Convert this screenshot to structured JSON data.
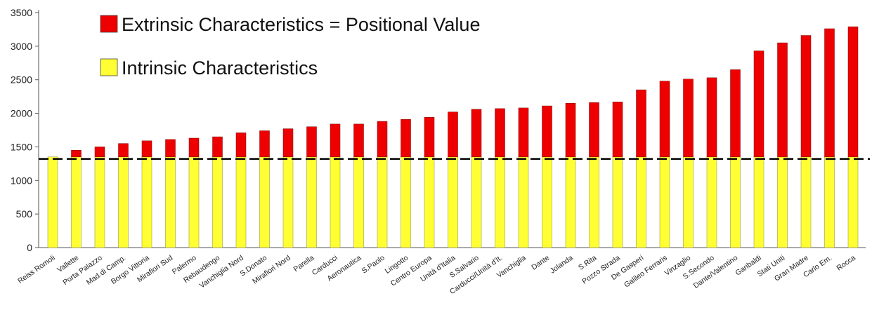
{
  "chart_data": {
    "type": "bar",
    "stacked": true,
    "categories": [
      "Reiss Romoli",
      "Vallette",
      "Porta Palazzo",
      "Mad.di Camp.",
      "Borgo Vittoria",
      "Mirafiori Sud",
      "Palermo",
      "Rebaudengo",
      "Vanchiglia Nord",
      "S.Donato",
      "Mirafiori Nord",
      "Parella",
      "Carducci",
      "Aeronautica",
      "S.Paolo",
      "Lingotto",
      "Centro Europa",
      "Unità d'Italia",
      "S.Salvario",
      "Carducci/Unità d'It.",
      "Vanchiglia",
      "Dante",
      "Jolanda",
      "S.Rita",
      "Pozzo Strada",
      "De Gasperi",
      "Galileo Ferraris",
      "Vinzaglio",
      "S.Secondo",
      "Dante/Valentino",
      "Garibaldi",
      "Stati Uniti",
      "Gran Madre",
      "Carlo Em.",
      "Rocca"
    ],
    "series": [
      {
        "name": "Intrinsic Characteristics",
        "color": "#ffff33",
        "values": [
          1350,
          1350,
          1350,
          1350,
          1350,
          1350,
          1350,
          1350,
          1350,
          1350,
          1350,
          1350,
          1350,
          1350,
          1350,
          1350,
          1350,
          1350,
          1350,
          1350,
          1350,
          1350,
          1350,
          1350,
          1350,
          1350,
          1350,
          1350,
          1350,
          1350,
          1350,
          1350,
          1350,
          1350,
          1350
        ]
      },
      {
        "name": "Extrinsic Characteristics = Positional Value",
        "color": "#ee0000",
        "values": [
          0,
          100,
          150,
          200,
          240,
          260,
          280,
          300,
          360,
          390,
          420,
          450,
          490,
          490,
          530,
          560,
          590,
          670,
          710,
          720,
          730,
          760,
          800,
          810,
          820,
          1000,
          1130,
          1160,
          1180,
          1300,
          1580,
          1700,
          1810,
          1910,
          1940
        ]
      }
    ],
    "reference_line": {
      "y": 1320,
      "style": "dashed",
      "color": "#000000"
    },
    "ylim": [
      0,
      3500
    ],
    "yticks": [
      0,
      500,
      1000,
      1500,
      2000,
      2500,
      3000,
      3500
    ],
    "legend_placement": "top-left",
    "grid": false
  }
}
